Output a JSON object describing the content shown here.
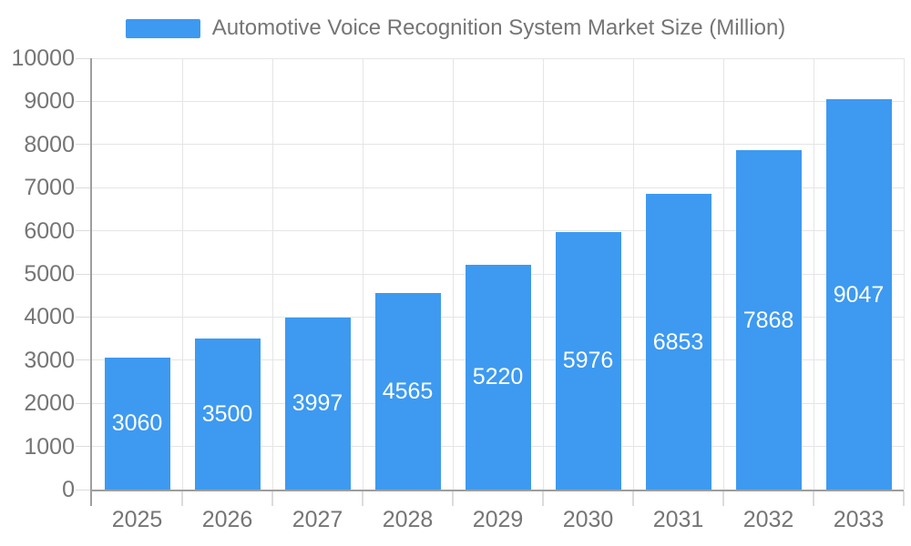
{
  "legend": {
    "label": "Automotive Voice Recognition System Market Size (Million)"
  },
  "chart_data": {
    "type": "bar",
    "title": "Automotive Voice Recognition System Market Size (Million)",
    "series_name": "Automotive Voice Recognition System Market Size (Million)",
    "categories": [
      "2025",
      "2026",
      "2027",
      "2028",
      "2029",
      "2030",
      "2031",
      "2032",
      "2033"
    ],
    "values": [
      3060,
      3500,
      3997,
      4565,
      5220,
      5976,
      6853,
      7868,
      9047
    ],
    "xlabel": "",
    "ylabel": "",
    "ylim": [
      0,
      10000
    ],
    "ytick_step": 1000,
    "ytick_labels": [
      "0",
      "1000",
      "2000",
      "3000",
      "4000",
      "5000",
      "6000",
      "7000",
      "8000",
      "9000",
      "10000"
    ],
    "grid": true,
    "legend_position": "top",
    "colors": {
      "bar": "#3D9AF0",
      "value_label": "#FFFFFF",
      "axis_text": "#757575",
      "axis_line": "#9E9E9E",
      "gridline": "#E5E5E5",
      "tick": "#DCDCDC",
      "background": "#FFFFFF"
    }
  }
}
